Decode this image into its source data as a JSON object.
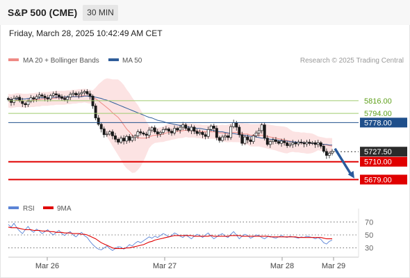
{
  "header": {
    "instrument": "S&P 500 (CME)",
    "timeframe": "30 MIN",
    "timestamp": "Friday, March 28, 2025 10:42:49 AM CET"
  },
  "legend": {
    "ma20_bb": "MA 20 + Bollinger Bands",
    "ma50": "MA 50",
    "source": "Research © 2025 Trading Central"
  },
  "colors": {
    "bull": "#ffffff",
    "bear": "#1a1a1a",
    "ma20": "#ef8a85",
    "ma50": "#2f5d9a",
    "bands_fill": "#fbdcdc",
    "green_level": "#9fcb6e",
    "blue_level": "#1f4f8b",
    "red_level": "#e00000",
    "arrow": "#2a5a9c",
    "rsi": "#5b84d6",
    "rsi_ma": "#e00000"
  },
  "chart_data": [
    {
      "type": "candlestick",
      "x_ticks": [
        "Mar 26",
        "Mar 27",
        "Mar 28",
        "Mar 29"
      ],
      "ylim": [
        5665,
        5840
      ],
      "levels": [
        {
          "value": 5816.0,
          "label": "5816.00",
          "kind": "resistance"
        },
        {
          "value": 5794.0,
          "label": "5794.00",
          "kind": "resistance"
        },
        {
          "value": 5778.0,
          "label": "5778.00",
          "kind": "pivot"
        },
        {
          "value": 5727.5,
          "label": "5727.50",
          "kind": "last"
        },
        {
          "value": 5710.0,
          "label": "5710.00",
          "kind": "support"
        },
        {
          "value": 5679.0,
          "label": "5679.00",
          "kind": "support"
        }
      ],
      "close": [
        5818,
        5813,
        5820,
        5822,
        5816,
        5811,
        5809,
        5815,
        5821,
        5819,
        5823,
        5826,
        5824,
        5821,
        5819,
        5825,
        5828,
        5826,
        5823,
        5820,
        5818,
        5822,
        5827,
        5829,
        5826,
        5828,
        5830,
        5832,
        5828,
        5824,
        5807,
        5786,
        5775,
        5767,
        5757,
        5758,
        5762,
        5755,
        5749,
        5744,
        5751,
        5746,
        5754,
        5747,
        5752,
        5755,
        5762,
        5760,
        5758,
        5756,
        5765,
        5769,
        5762,
        5758,
        5761,
        5766,
        5767,
        5763,
        5760,
        5768,
        5765,
        5770,
        5774,
        5768,
        5764,
        5770,
        5763,
        5759,
        5761,
        5757,
        5754,
        5766,
        5772,
        5768,
        5752,
        5747,
        5753,
        5755,
        5752,
        5771,
        5778,
        5770,
        5757,
        5742,
        5753,
        5748,
        5745,
        5755,
        5760,
        5764,
        5774,
        5751,
        5740,
        5745,
        5748,
        5745,
        5742,
        5746,
        5743,
        5738,
        5740,
        5743,
        5741,
        5744,
        5743,
        5741,
        5744,
        5742,
        5743,
        5740,
        5743,
        5737,
        5728,
        5721,
        5725,
        5728
      ],
      "ma20": [
        5816,
        5815,
        5816,
        5817,
        5817,
        5816,
        5816,
        5816,
        5817,
        5817,
        5818,
        5818,
        5819,
        5819,
        5819,
        5820,
        5820,
        5821,
        5821,
        5821,
        5821,
        5822,
        5822,
        5823,
        5823,
        5824,
        5824,
        5825,
        5824,
        5823,
        5822,
        5819,
        5816,
        5812,
        5808,
        5804,
        5800,
        5795,
        5791,
        5787,
        5781,
        5774,
        5767,
        5762,
        5756,
        5753,
        5752,
        5751,
        5751,
        5751,
        5753,
        5755,
        5756,
        5756,
        5757,
        5758,
        5760,
        5761,
        5762,
        5762,
        5763,
        5763,
        5764,
        5765,
        5764,
        5764,
        5764,
        5763,
        5763,
        5762,
        5762,
        5762,
        5762,
        5762,
        5761,
        5760,
        5760,
        5759,
        5759,
        5760,
        5761,
        5761,
        5760,
        5759,
        5758,
        5758,
        5756,
        5756,
        5756,
        5756,
        5756,
        5755,
        5754,
        5753,
        5752,
        5751,
        5750,
        5749,
        5748,
        5747,
        5746,
        5745,
        5744,
        5744,
        5743,
        5743,
        5742,
        5742,
        5742,
        5742,
        5742,
        5741,
        5740,
        5739,
        5738,
        5737
      ],
      "ma50": [
        5818,
        5818,
        5818,
        5819,
        5819,
        5819,
        5819,
        5820,
        5820,
        5820,
        5820,
        5821,
        5821,
        5821,
        5821,
        5822,
        5822,
        5822,
        5822,
        5822,
        5822,
        5823,
        5823,
        5823,
        5823,
        5823,
        5823,
        5824,
        5824,
        5823,
        5823,
        5822,
        5821,
        5820,
        5818,
        5817,
        5815,
        5813,
        5811,
        5809,
        5807,
        5805,
        5803,
        5801,
        5799,
        5797,
        5795,
        5793,
        5791,
        5789,
        5787,
        5786,
        5784,
        5782,
        5781,
        5780,
        5778,
        5777,
        5776,
        5775,
        5774,
        5773,
        5772,
        5771,
        5770,
        5770,
        5769,
        5768,
        5768,
        5767,
        5766,
        5765,
        5765,
        5764,
        5763,
        5762,
        5762,
        5761,
        5760,
        5759,
        5759,
        5758,
        5757,
        5756,
        5756,
        5755,
        5754,
        5754,
        5753,
        5752,
        5751,
        5751,
        5750,
        5749,
        5749,
        5748,
        5747,
        5747,
        5746,
        5746,
        5745,
        5745,
        5744,
        5744,
        5744,
        5743,
        5743,
        5742,
        5742,
        5742,
        5741,
        5741,
        5740,
        5740,
        5739,
        5739
      ]
    },
    {
      "type": "line",
      "series": [
        {
          "name": "RSI",
          "values": [
            66,
            62,
            68,
            61,
            56,
            52,
            58,
            63,
            57,
            54,
            59,
            56,
            52,
            55,
            58,
            53,
            50,
            54,
            57,
            52,
            49,
            53,
            55,
            50,
            47,
            51,
            54,
            49,
            46,
            40,
            35,
            31,
            28,
            27,
            30,
            33,
            29,
            26,
            29,
            32,
            31,
            28,
            31,
            35,
            33,
            37,
            40,
            38,
            41,
            44,
            47,
            45,
            48,
            46,
            49,
            52,
            50,
            47,
            49,
            53,
            51,
            48,
            46,
            50,
            47,
            44,
            48,
            51,
            49,
            46,
            50,
            53,
            48,
            44,
            47,
            50,
            52,
            48,
            46,
            51,
            55,
            50,
            44,
            48,
            51,
            49,
            45,
            47,
            50,
            49,
            46,
            44,
            47,
            48,
            46,
            45,
            47,
            49,
            47,
            46,
            48,
            47,
            46,
            45,
            47,
            46,
            48,
            47,
            46,
            44,
            46,
            43,
            38,
            36,
            40,
            42
          ]
        },
        {
          "name": "9MA",
          "values": [
            62,
            61,
            61,
            61,
            60,
            59,
            58,
            58,
            58,
            57,
            57,
            57,
            56,
            56,
            56,
            55,
            55,
            54,
            54,
            54,
            53,
            53,
            53,
            52,
            52,
            52,
            51,
            51,
            50,
            48,
            46,
            44,
            41,
            38,
            36,
            34,
            32,
            30,
            29,
            29,
            29,
            29,
            30,
            30,
            31,
            32,
            33,
            34,
            35,
            37,
            39,
            40,
            42,
            43,
            44,
            45,
            46,
            47,
            48,
            49,
            49,
            49,
            49,
            49,
            49,
            49,
            48,
            48,
            48,
            48,
            48,
            48,
            49,
            48,
            48,
            48,
            48,
            48,
            48,
            49,
            49,
            49,
            49,
            48,
            48,
            48,
            48,
            48,
            48,
            48,
            48,
            48,
            48,
            47,
            47,
            47,
            47,
            47,
            47,
            47,
            47,
            47,
            47,
            46,
            46,
            46,
            46,
            46,
            46,
            46,
            46,
            46,
            45,
            44,
            44,
            44
          ]
        }
      ],
      "y_ticks": [
        70,
        50,
        30
      ],
      "ylim": [
        20,
        80
      ],
      "legend": [
        "RSI",
        "9MA"
      ]
    }
  ]
}
